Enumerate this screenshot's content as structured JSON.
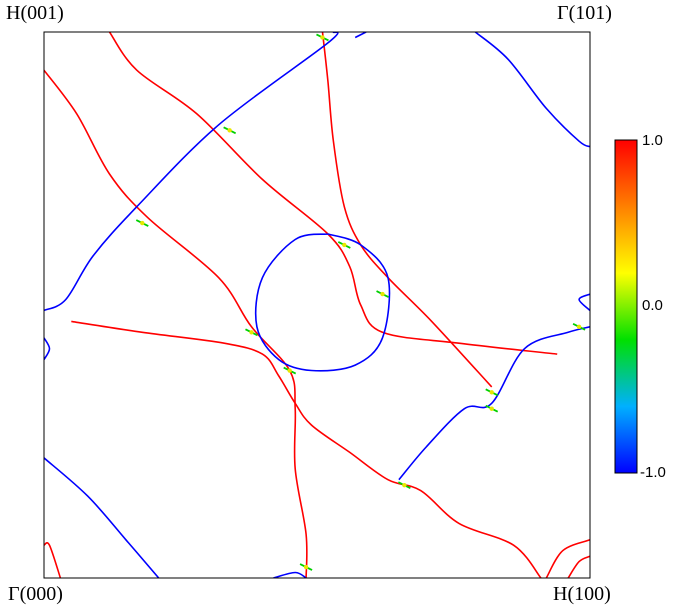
{
  "labels": {
    "top_left": "H(001)",
    "top_right": "Γ(101)",
    "bottom_left": "Γ(000)",
    "bottom_right": "H(100)"
  },
  "chart_data": {
    "type": "contour",
    "title": "",
    "xlabel": "",
    "ylabel": "",
    "corners": {
      "top_left": "H(001)",
      "top_right": "Γ(101)",
      "bottom_left": "Γ(000)",
      "bottom_right": "H(100)"
    },
    "x_range": [
      0,
      1
    ],
    "y_range": [
      0,
      1
    ],
    "colorbar": {
      "ticks": [
        "1.0",
        "0.0",
        "-1.0"
      ],
      "min": -1.0,
      "max": 1.0,
      "colors": [
        "#0000ff",
        "#00b0ff",
        "#00e000",
        "#ffff00",
        "#ff8000",
        "#ff0000"
      ]
    },
    "curves": [
      {
        "color": "#ff0000",
        "points": [
          [
            0.12,
            1.0
          ],
          [
            0.17,
            0.93
          ],
          [
            0.28,
            0.85
          ],
          [
            0.4,
            0.73
          ],
          [
            0.52,
            0.63
          ],
          [
            0.56,
            0.57
          ],
          [
            0.58,
            0.5
          ],
          [
            0.62,
            0.45
          ],
          [
            0.76,
            0.43
          ],
          [
            0.94,
            0.41
          ]
        ]
      },
      {
        "color": "#ff0000",
        "points": [
          [
            0.51,
            1.0
          ],
          [
            0.52,
            0.91
          ],
          [
            0.53,
            0.8
          ],
          [
            0.55,
            0.68
          ],
          [
            0.58,
            0.61
          ],
          [
            0.63,
            0.55
          ],
          [
            0.71,
            0.47
          ],
          [
            0.82,
            0.35
          ]
        ]
      },
      {
        "color": "#ff0000",
        "points": [
          [
            0.0,
            0.93
          ],
          [
            0.06,
            0.85
          ],
          [
            0.12,
            0.74
          ],
          [
            0.19,
            0.66
          ],
          [
            0.32,
            0.55
          ],
          [
            0.38,
            0.46
          ],
          [
            0.45,
            0.38
          ],
          [
            0.46,
            0.31
          ],
          [
            0.46,
            0.2
          ],
          [
            0.48,
            0.08
          ],
          [
            0.48,
            0.0
          ]
        ]
      },
      {
        "color": "#ff0000",
        "points": [
          [
            0.05,
            0.47
          ],
          [
            0.18,
            0.45
          ],
          [
            0.33,
            0.43
          ],
          [
            0.4,
            0.41
          ],
          [
            0.43,
            0.37
          ],
          [
            0.46,
            0.32
          ],
          [
            0.49,
            0.28
          ],
          [
            0.56,
            0.23
          ],
          [
            0.63,
            0.18
          ],
          [
            0.69,
            0.16
          ],
          [
            0.76,
            0.1
          ],
          [
            0.86,
            0.06
          ],
          [
            0.91,
            0.0
          ]
        ]
      },
      {
        "color": "#ff0000",
        "points": [
          [
            0.0,
            0.06
          ],
          [
            0.01,
            0.06
          ],
          [
            0.03,
            0.0
          ]
        ]
      },
      {
        "color": "#ff0000",
        "points": [
          [
            0.92,
            0.0
          ],
          [
            0.95,
            0.05
          ],
          [
            1.0,
            0.07
          ]
        ]
      },
      {
        "color": "#ff0000",
        "points": [
          [
            0.96,
            0.0
          ],
          [
            0.98,
            0.03
          ],
          [
            1.0,
            0.04
          ]
        ]
      },
      {
        "color": "#0000ff",
        "points": [
          [
            0.0,
            0.49
          ],
          [
            0.04,
            0.51
          ],
          [
            0.09,
            0.59
          ],
          [
            0.17,
            0.68
          ],
          [
            0.32,
            0.83
          ],
          [
            0.52,
            0.98
          ],
          [
            0.53,
            1.0
          ]
        ]
      },
      {
        "color": "#0000ff",
        "points": [
          [
            0.57,
            0.99
          ],
          [
            0.59,
            1.0
          ]
        ]
      },
      {
        "color": "#0000ff",
        "points": [
          [
            0.79,
            1.0
          ],
          [
            0.85,
            0.95
          ],
          [
            0.92,
            0.86
          ],
          [
            0.98,
            0.8
          ],
          [
            1.0,
            0.79
          ]
        ]
      },
      {
        "color": "#0000ff",
        "points": [
          [
            0.0,
            0.22
          ],
          [
            0.08,
            0.15
          ],
          [
            0.15,
            0.07
          ],
          [
            0.21,
            0.0
          ]
        ]
      },
      {
        "color": "#0000ff",
        "points": [
          [
            0.42,
            0.0
          ],
          [
            0.46,
            0.01
          ],
          [
            0.48,
            0.0
          ]
        ]
      },
      {
        "color": "#0000ff",
        "points": [
          [
            0.65,
            0.18
          ],
          [
            0.7,
            0.24
          ],
          [
            0.77,
            0.31
          ],
          [
            0.82,
            0.32
          ],
          [
            0.88,
            0.42
          ],
          [
            0.96,
            0.45
          ],
          [
            1.0,
            0.46
          ]
        ]
      },
      {
        "color": "#0000ff",
        "points": [
          [
            0.0,
            0.44
          ],
          [
            0.01,
            0.42
          ],
          [
            0.0,
            0.4
          ]
        ]
      },
      {
        "color": "#0000ff",
        "points": [
          [
            1.0,
            0.52
          ],
          [
            0.98,
            0.51
          ],
          [
            1.0,
            0.49
          ]
        ]
      },
      {
        "color": "#0000ff",
        "points": [
          [
            0.52,
            0.63
          ],
          [
            0.58,
            0.61
          ],
          [
            0.63,
            0.55
          ],
          [
            0.62,
            0.44
          ],
          [
            0.57,
            0.39
          ],
          [
            0.49,
            0.38
          ],
          [
            0.43,
            0.4
          ],
          [
            0.39,
            0.46
          ],
          [
            0.4,
            0.55
          ],
          [
            0.46,
            0.62
          ],
          [
            0.52,
            0.63
          ]
        ]
      }
    ],
    "crossings": [
      [
        0.34,
        0.82
      ],
      [
        0.18,
        0.65
      ],
      [
        0.55,
        0.61
      ],
      [
        0.62,
        0.52
      ],
      [
        0.38,
        0.45
      ],
      [
        0.45,
        0.38
      ],
      [
        0.82,
        0.34
      ],
      [
        0.82,
        0.31
      ],
      [
        0.66,
        0.17
      ],
      [
        0.48,
        0.02
      ],
      [
        0.51,
        0.99
      ],
      [
        0.98,
        0.46
      ]
    ]
  }
}
